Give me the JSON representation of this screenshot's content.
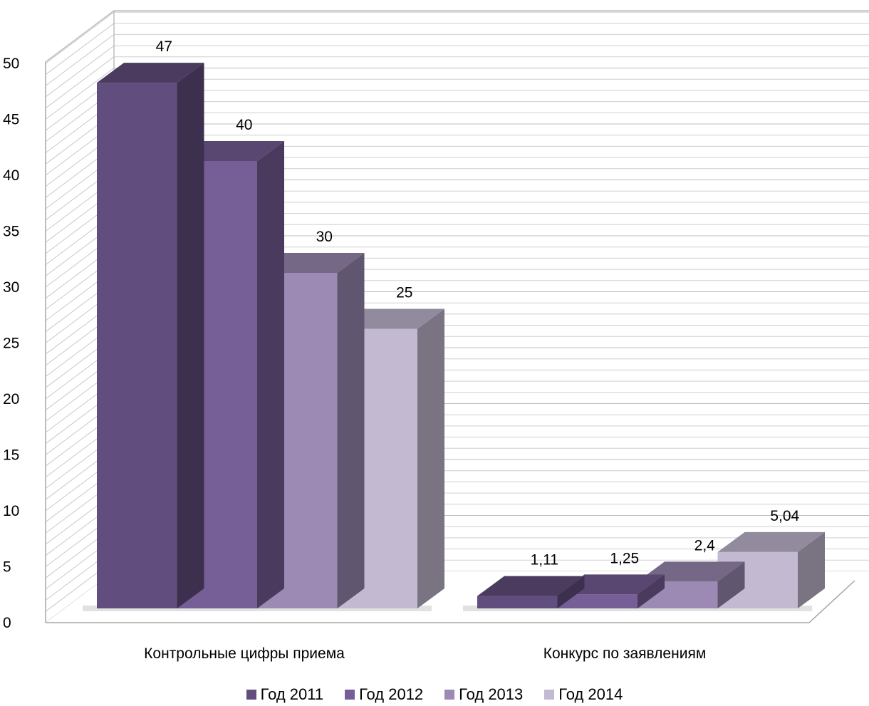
{
  "chart_data": {
    "type": "bar",
    "title": "",
    "xlabel": "",
    "ylabel": "",
    "ylim": [
      0,
      50
    ],
    "yticks": [
      0,
      5,
      10,
      15,
      20,
      25,
      30,
      35,
      40,
      45,
      50
    ],
    "categories": [
      "Контрольные цифры приема",
      "Конкурс по заявлениям"
    ],
    "series": [
      {
        "name": "Год 2011",
        "values": [
          47,
          1.11
        ],
        "labels": [
          "47",
          "1,11"
        ],
        "color": "#624e7e"
      },
      {
        "name": "Год 2012",
        "values": [
          40,
          1.25
        ],
        "labels": [
          "40",
          "1,25"
        ],
        "color": "#765e97"
      },
      {
        "name": "Год 2013",
        "values": [
          30,
          2.4
        ],
        "labels": [
          "30",
          "2,4"
        ],
        "color": "#9c8ab4"
      },
      {
        "name": "Год 2014",
        "values": [
          25,
          5.04
        ],
        "labels": [
          "25",
          "5,04"
        ],
        "color": "#c3b9d1"
      }
    ],
    "grid": true,
    "legend": "bottom",
    "style": "3d-clustered"
  }
}
